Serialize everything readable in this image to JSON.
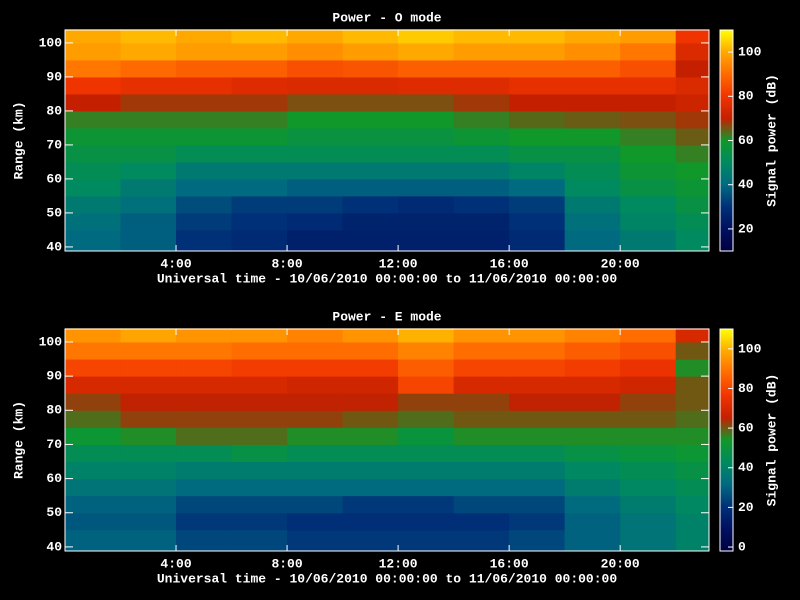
{
  "chart_data": [
    {
      "type": "heatmap",
      "title": "Power - O mode",
      "xlabel": "Universal time - 10/06/2010 00:00:00 to 11/06/2010 00:00:00",
      "ylabel": "Range (km)",
      "colorbar_label": "Signal power (dB)",
      "x_bins": [
        0,
        2,
        4,
        6,
        8,
        10,
        12,
        14,
        16,
        18,
        20,
        22,
        23.2
      ],
      "y_bins": [
        39,
        45,
        50,
        55,
        60,
        65,
        70,
        75,
        80,
        85,
        90,
        95,
        100,
        104
      ],
      "values": [
        [
          40,
          38,
          30,
          28,
          25,
          25,
          25,
          25,
          28,
          40,
          45,
          50
        ],
        [
          42,
          38,
          32,
          30,
          28,
          26,
          26,
          26,
          30,
          42,
          48,
          52
        ],
        [
          45,
          42,
          35,
          32,
          32,
          30,
          28,
          30,
          32,
          45,
          50,
          55
        ],
        [
          50,
          45,
          40,
          40,
          38,
          38,
          38,
          38,
          40,
          50,
          55,
          58
        ],
        [
          52,
          50,
          45,
          45,
          45,
          45,
          45,
          45,
          48,
          52,
          58,
          60
        ],
        [
          55,
          55,
          52,
          52,
          52,
          52,
          52,
          52,
          55,
          55,
          60,
          62
        ],
        [
          58,
          58,
          58,
          58,
          56,
          56,
          56,
          58,
          60,
          60,
          62,
          65
        ],
        [
          62,
          62,
          62,
          62,
          60,
          60,
          60,
          62,
          64,
          65,
          66,
          68
        ],
        [
          70,
          68,
          68,
          68,
          66,
          66,
          66,
          68,
          70,
          70,
          70,
          72
        ],
        [
          80,
          78,
          78,
          76,
          75,
          75,
          76,
          76,
          78,
          78,
          78,
          75
        ],
        [
          92,
          90,
          88,
          88,
          85,
          86,
          88,
          88,
          88,
          88,
          85,
          70
        ],
        [
          98,
          100,
          98,
          98,
          96,
          98,
          100,
          98,
          98,
          96,
          92,
          75
        ],
        [
          100,
          102,
          100,
          102,
          100,
          102,
          104,
          102,
          102,
          100,
          98,
          80
        ]
      ],
      "xlim": [
        0,
        23.2
      ],
      "ylim": [
        38.8,
        103.8
      ],
      "xticks": [
        {
          "value": 4,
          "label": "4:00"
        },
        {
          "value": 8,
          "label": "8:00"
        },
        {
          "value": 12,
          "label": "12:00"
        },
        {
          "value": 16,
          "label": "16:00"
        },
        {
          "value": 20,
          "label": "20:00"
        }
      ],
      "yticks": [
        40,
        50,
        60,
        70,
        80,
        90,
        100
      ],
      "clim": [
        10,
        110
      ],
      "cticks": [
        20,
        40,
        60,
        80,
        100
      ],
      "colorscale": [
        "#000040",
        "#001060",
        "#003078",
        "#006a80",
        "#008a60",
        "#10982a",
        "#c42000",
        "#f03400",
        "#ff6a00",
        "#ffa800",
        "#ffff00"
      ]
    },
    {
      "type": "heatmap",
      "title": "Power - E mode",
      "xlabel": "Universal time - 10/06/2010 00:00:00 to 11/06/2010 00:00:00",
      "ylabel": "Range (km)",
      "colorbar_label": "Signal power (dB)",
      "x_bins": [
        0,
        2,
        4,
        6,
        8,
        10,
        12,
        14,
        16,
        18,
        20,
        22,
        23.2
      ],
      "y_bins": [
        39,
        45,
        50,
        55,
        60,
        65,
        70,
        75,
        80,
        85,
        90,
        95,
        100,
        104
      ],
      "values": [
        [
          30,
          30,
          25,
          25,
          22,
          22,
          22,
          22,
          25,
          30,
          35,
          40
        ],
        [
          28,
          28,
          22,
          22,
          20,
          20,
          20,
          20,
          22,
          30,
          35,
          40
        ],
        [
          30,
          30,
          25,
          25,
          25,
          22,
          22,
          25,
          25,
          32,
          38,
          42
        ],
        [
          35,
          35,
          32,
          32,
          32,
          32,
          32,
          32,
          32,
          38,
          42,
          45
        ],
        [
          40,
          40,
          38,
          38,
          38,
          38,
          38,
          38,
          38,
          42,
          45,
          48
        ],
        [
          45,
          45,
          45,
          48,
          45,
          45,
          45,
          45,
          45,
          48,
          50,
          52
        ],
        [
          52,
          55,
          58,
          58,
          55,
          55,
          50,
          55,
          55,
          55,
          55,
          55
        ],
        [
          58,
          62,
          62,
          62,
          62,
          60,
          58,
          60,
          60,
          60,
          60,
          58
        ],
        [
          62,
          65,
          65,
          65,
          65,
          65,
          62,
          62,
          65,
          65,
          62,
          60
        ],
        [
          70,
          70,
          70,
          70,
          68,
          68,
          80,
          70,
          70,
          70,
          68,
          60
        ],
        [
          80,
          80,
          80,
          78,
          78,
          78,
          85,
          80,
          80,
          78,
          75,
          55
        ],
        [
          90,
          90,
          90,
          88,
          88,
          88,
          92,
          88,
          88,
          85,
          82,
          60
        ],
        [
          95,
          98,
          95,
          95,
          92,
          95,
          100,
          95,
          95,
          92,
          88,
          70
        ]
      ],
      "xlim": [
        0,
        23.2
      ],
      "ylim": [
        38.8,
        103.8
      ],
      "xticks": [
        {
          "value": 4,
          "label": "4:00"
        },
        {
          "value": 8,
          "label": "8:00"
        },
        {
          "value": 12,
          "label": "12:00"
        },
        {
          "value": 16,
          "label": "16:00"
        },
        {
          "value": 20,
          "label": "20:00"
        }
      ],
      "yticks": [
        40,
        50,
        60,
        70,
        80,
        90,
        100
      ],
      "clim": [
        -2,
        110
      ],
      "cticks": [
        0,
        20,
        40,
        60,
        80,
        100
      ],
      "colorscale": [
        "#000040",
        "#001060",
        "#003078",
        "#006a80",
        "#008a60",
        "#10982a",
        "#c42000",
        "#f03400",
        "#ff6a00",
        "#ffa800",
        "#ffff00"
      ]
    }
  ]
}
